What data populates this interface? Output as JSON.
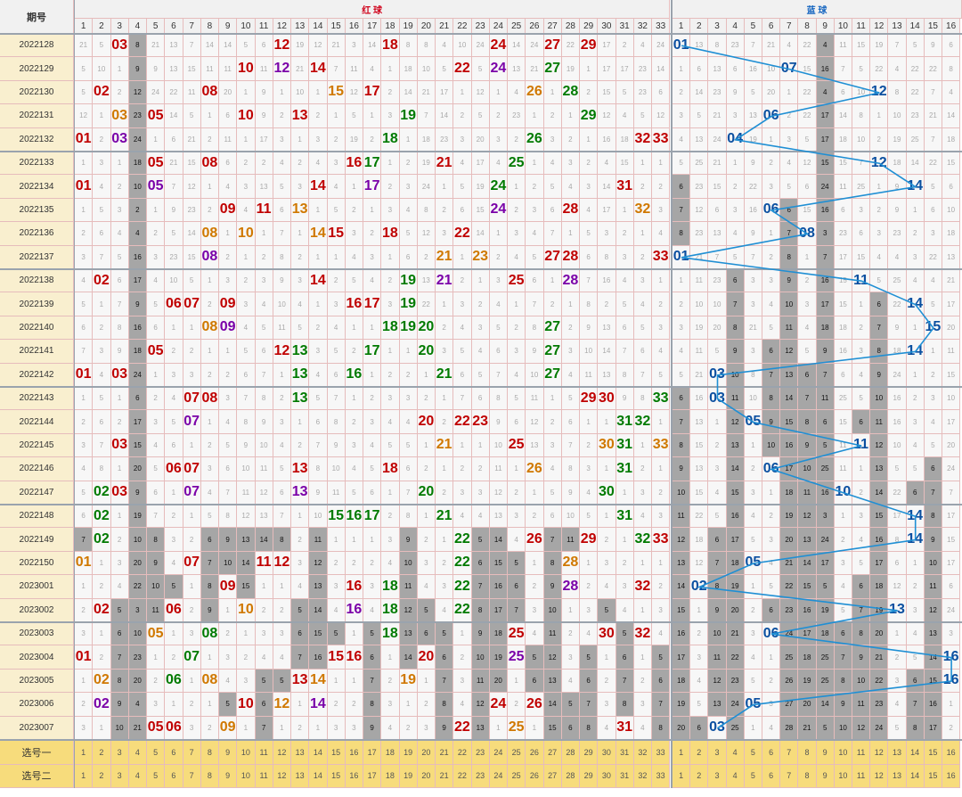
{
  "header": {
    "period_label": "期号",
    "red_label": "红 球",
    "blue_label": "蓝 球"
  },
  "chart_data": {
    "type": "table",
    "red_range": [
      1,
      33
    ],
    "blue_range": [
      1,
      16
    ],
    "colors": {
      "red": "#c00000",
      "green": "#007a00",
      "purple": "#7a00a8",
      "orange": "#d07800",
      "blue_ball": "#0b4fa0",
      "miss_gray": "#a6a6a6",
      "line": "#1f8fd4",
      "pick_row": "#f7dc7c",
      "period_col": "#f9efcf"
    },
    "draws": [
      {
        "period": "2022128",
        "red": [
          "03",
          "12",
          "18",
          "24",
          "27",
          "29"
        ],
        "blue": "01"
      },
      {
        "period": "2022129",
        "red": [
          "10",
          "12",
          "14",
          "22",
          "24",
          "27"
        ],
        "blue": "07"
      },
      {
        "period": "2022130",
        "red": [
          "02",
          "08",
          "15",
          "17",
          "26",
          "28"
        ],
        "blue": "12"
      },
      {
        "period": "2022131",
        "red": [
          "03",
          "05",
          "10",
          "13",
          "19",
          "29"
        ],
        "blue": "06"
      },
      {
        "period": "2022132",
        "red": [
          "01",
          "03",
          "18",
          "26",
          "32",
          "33"
        ],
        "blue": "04"
      },
      {
        "period": "2022133",
        "red": [
          "05",
          "08",
          "16",
          "17",
          "21",
          "25"
        ],
        "blue": "12"
      },
      {
        "period": "2022134",
        "red": [
          "01",
          "05",
          "14",
          "17",
          "24",
          "31"
        ],
        "blue": "14"
      },
      {
        "period": "2022135",
        "red": [
          "09",
          "11",
          "13",
          "24",
          "28",
          "32"
        ],
        "blue": "06"
      },
      {
        "period": "2022136",
        "red": [
          "08",
          "10",
          "14",
          "15",
          "18",
          "22"
        ],
        "blue": "08"
      },
      {
        "period": "2022137",
        "red": [
          "08",
          "21",
          "23",
          "27",
          "28",
          "33"
        ],
        "blue": "01"
      },
      {
        "period": "2022138",
        "red": [
          "02",
          "14",
          "19",
          "21",
          "25",
          "28"
        ],
        "blue": "11"
      },
      {
        "period": "2022139",
        "red": [
          "06",
          "07",
          "09",
          "16",
          "17",
          "19"
        ],
        "blue": "14"
      },
      {
        "period": "2022140",
        "red": [
          "08",
          "09",
          "18",
          "19",
          "20",
          "27"
        ],
        "blue": "15"
      },
      {
        "period": "2022141",
        "red": [
          "05",
          "12",
          "13",
          "17",
          "20",
          "27"
        ],
        "blue": "14"
      },
      {
        "period": "2022142",
        "red": [
          "01",
          "03",
          "13",
          "16",
          "21",
          "27"
        ],
        "blue": "03"
      },
      {
        "period": "2022143",
        "red": [
          "07",
          "08",
          "13",
          "29",
          "30",
          "33"
        ],
        "blue": "03"
      },
      {
        "period": "2022144",
        "red": [
          "07",
          "20",
          "22",
          "23",
          "31",
          "32"
        ],
        "blue": "05"
      },
      {
        "period": "2022145",
        "red": [
          "03",
          "21",
          "25",
          "30",
          "31",
          "33"
        ],
        "blue": "11"
      },
      {
        "period": "2022146",
        "red": [
          "06",
          "07",
          "13",
          "18",
          "26",
          "31"
        ],
        "blue": "06"
      },
      {
        "period": "2022147",
        "red": [
          "02",
          "03",
          "07",
          "13",
          "20",
          "30"
        ],
        "blue": "10"
      },
      {
        "period": "2022148",
        "red": [
          "02",
          "15",
          "16",
          "17",
          "21",
          "31"
        ],
        "blue": "14"
      },
      {
        "period": "2022149",
        "red": [
          "02",
          "22",
          "26",
          "29",
          "32",
          "33"
        ],
        "blue": "14"
      },
      {
        "period": "2022150",
        "red": [
          "01",
          "07",
          "11",
          "12",
          "22",
          "28"
        ],
        "blue": "05"
      },
      {
        "period": "2023001",
        "red": [
          "09",
          "16",
          "18",
          "22",
          "28",
          "32"
        ],
        "blue": "02"
      },
      {
        "period": "2023002",
        "red": [
          "02",
          "06",
          "10",
          "16",
          "18",
          "22"
        ],
        "blue": "13"
      },
      {
        "period": "2023003",
        "red": [
          "05",
          "08",
          "18",
          "25",
          "30",
          "32"
        ],
        "blue": "06"
      },
      {
        "period": "2023004",
        "red": [
          "01",
          "07",
          "15",
          "16",
          "20",
          "25"
        ],
        "blue": "16"
      },
      {
        "period": "2023005",
        "red": [
          "02",
          "06",
          "08",
          "13",
          "14",
          "19"
        ],
        "blue": "16"
      },
      {
        "period": "2023006",
        "red": [
          "02",
          "10",
          "12",
          "14",
          "24",
          "26"
        ],
        "blue": "05"
      },
      {
        "period": "2023007",
        "red": [
          "05",
          "06",
          "09",
          "22",
          "25",
          "31"
        ],
        "blue": "03"
      }
    ],
    "red_colors": {
      "2022128": [
        "#c00000",
        "#c00000",
        "#c00000",
        "#c00000",
        "#c00000",
        "#c00000"
      ],
      "2022129": [
        "#c00000",
        "#7a00a8",
        "#c00000",
        "#c00000",
        "#7a00a8",
        "#007a00"
      ],
      "2022130": [
        "#c00000",
        "#c00000",
        "#d07800",
        "#c00000",
        "#d07800",
        "#007a00"
      ],
      "2022131": [
        "#d07800",
        "#c00000",
        "#c00000",
        "#c00000",
        "#007a00",
        "#007a00"
      ],
      "2022132": [
        "#c00000",
        "#7a00a8",
        "#007a00",
        "#007a00",
        "#c00000",
        "#c00000"
      ],
      "2022133": [
        "#c00000",
        "#c00000",
        "#c00000",
        "#007a00",
        "#c00000",
        "#007a00"
      ],
      "2022134": [
        "#c00000",
        "#7a00a8",
        "#c00000",
        "#7a00a8",
        "#007a00",
        "#c00000"
      ],
      "2022135": [
        "#c00000",
        "#c00000",
        "#d07800",
        "#7a00a8",
        "#c00000",
        "#d07800"
      ],
      "2022136": [
        "#d07800",
        "#d07800",
        "#d07800",
        "#c00000",
        "#c00000",
        "#c00000"
      ],
      "2022137": [
        "#7a00a8",
        "#d07800",
        "#d07800",
        "#c00000",
        "#c00000",
        "#c00000"
      ],
      "2022138": [
        "#c00000",
        "#c00000",
        "#007a00",
        "#7a00a8",
        "#c00000",
        "#7a00a8"
      ],
      "2022139": [
        "#c00000",
        "#c00000",
        "#c00000",
        "#c00000",
        "#c00000",
        "#007a00"
      ],
      "2022140": [
        "#d07800",
        "#7a00a8",
        "#007a00",
        "#007a00",
        "#007a00",
        "#007a00"
      ],
      "2022141": [
        "#c00000",
        "#c00000",
        "#007a00",
        "#007a00",
        "#007a00",
        "#007a00"
      ],
      "2022142": [
        "#c00000",
        "#c00000",
        "#007a00",
        "#007a00",
        "#007a00",
        "#007a00"
      ],
      "2022143": [
        "#c00000",
        "#c00000",
        "#007a00",
        "#c00000",
        "#c00000",
        "#007a00"
      ],
      "2022144": [
        "#7a00a8",
        "#c00000",
        "#c00000",
        "#c00000",
        "#007a00",
        "#007a00"
      ],
      "2022145": [
        "#c00000",
        "#d07800",
        "#c00000",
        "#d07800",
        "#007a00",
        "#d07800"
      ],
      "2022146": [
        "#c00000",
        "#c00000",
        "#c00000",
        "#c00000",
        "#d07800",
        "#007a00"
      ],
      "2022147": [
        "#007a00",
        "#c00000",
        "#7a00a8",
        "#7a00a8",
        "#007a00",
        "#007a00"
      ],
      "2022148": [
        "#007a00",
        "#007a00",
        "#007a00",
        "#007a00",
        "#007a00",
        "#007a00"
      ],
      "2022149": [
        "#007a00",
        "#007a00",
        "#c00000",
        "#c00000",
        "#007a00",
        "#c00000"
      ],
      "2022150": [
        "#d07800",
        "#c00000",
        "#c00000",
        "#c00000",
        "#007a00",
        "#d07800"
      ],
      "2023001": [
        "#c00000",
        "#c00000",
        "#007a00",
        "#007a00",
        "#7a00a8",
        "#c00000"
      ],
      "2023002": [
        "#c00000",
        "#c00000",
        "#d07800",
        "#7a00a8",
        "#007a00",
        "#007a00"
      ],
      "2023003": [
        "#d07800",
        "#007a00",
        "#007a00",
        "#c00000",
        "#c00000",
        "#c00000"
      ],
      "2023004": [
        "#c00000",
        "#007a00",
        "#c00000",
        "#c00000",
        "#c00000",
        "#7a00a8"
      ],
      "2023005": [
        "#d07800",
        "#007a00",
        "#d07800",
        "#c00000",
        "#d07800",
        "#d07800"
      ],
      "2023006": [
        "#7a00a8",
        "#c00000",
        "#d07800",
        "#7a00a8",
        "#c00000",
        "#c00000"
      ],
      "2023007": [
        "#c00000",
        "#c00000",
        "#d07800",
        "#c00000",
        "#d07800",
        "#c00000"
      ]
    },
    "pick_rows": [
      {
        "label": "选号一"
      },
      {
        "label": "选号二"
      }
    ],
    "miss_sample_red": {
      "2022128": {
        "1": "2",
        "2": "3",
        "4": "4",
        "5": "3",
        "6": "6",
        "7": "8",
        "8": "6",
        "9": "1",
        "10": "1",
        "11": "10",
        "13": "2",
        "14": "3",
        "15": "6",
        "16": "5",
        "17": "1",
        "19": "4",
        "20": "5",
        "21": "2",
        "22": "5",
        "23": "22",
        "25": "3",
        "26": "3",
        "28": "1",
        "30": "2",
        "31": "3",
        "32": "26",
        "33": "1"
      }
    },
    "miss_sample_blue": {
      "2022128": {
        "2": "7",
        "3": "73",
        "4": "9",
        "5": "1",
        "6": "31",
        "7": "11",
        "8": "32",
        "9": "10",
        "10": "13",
        "11": "25",
        "12": "19",
        "13": "55",
        "14": "1",
        "15": "26",
        "16": "18"
      }
    }
  }
}
